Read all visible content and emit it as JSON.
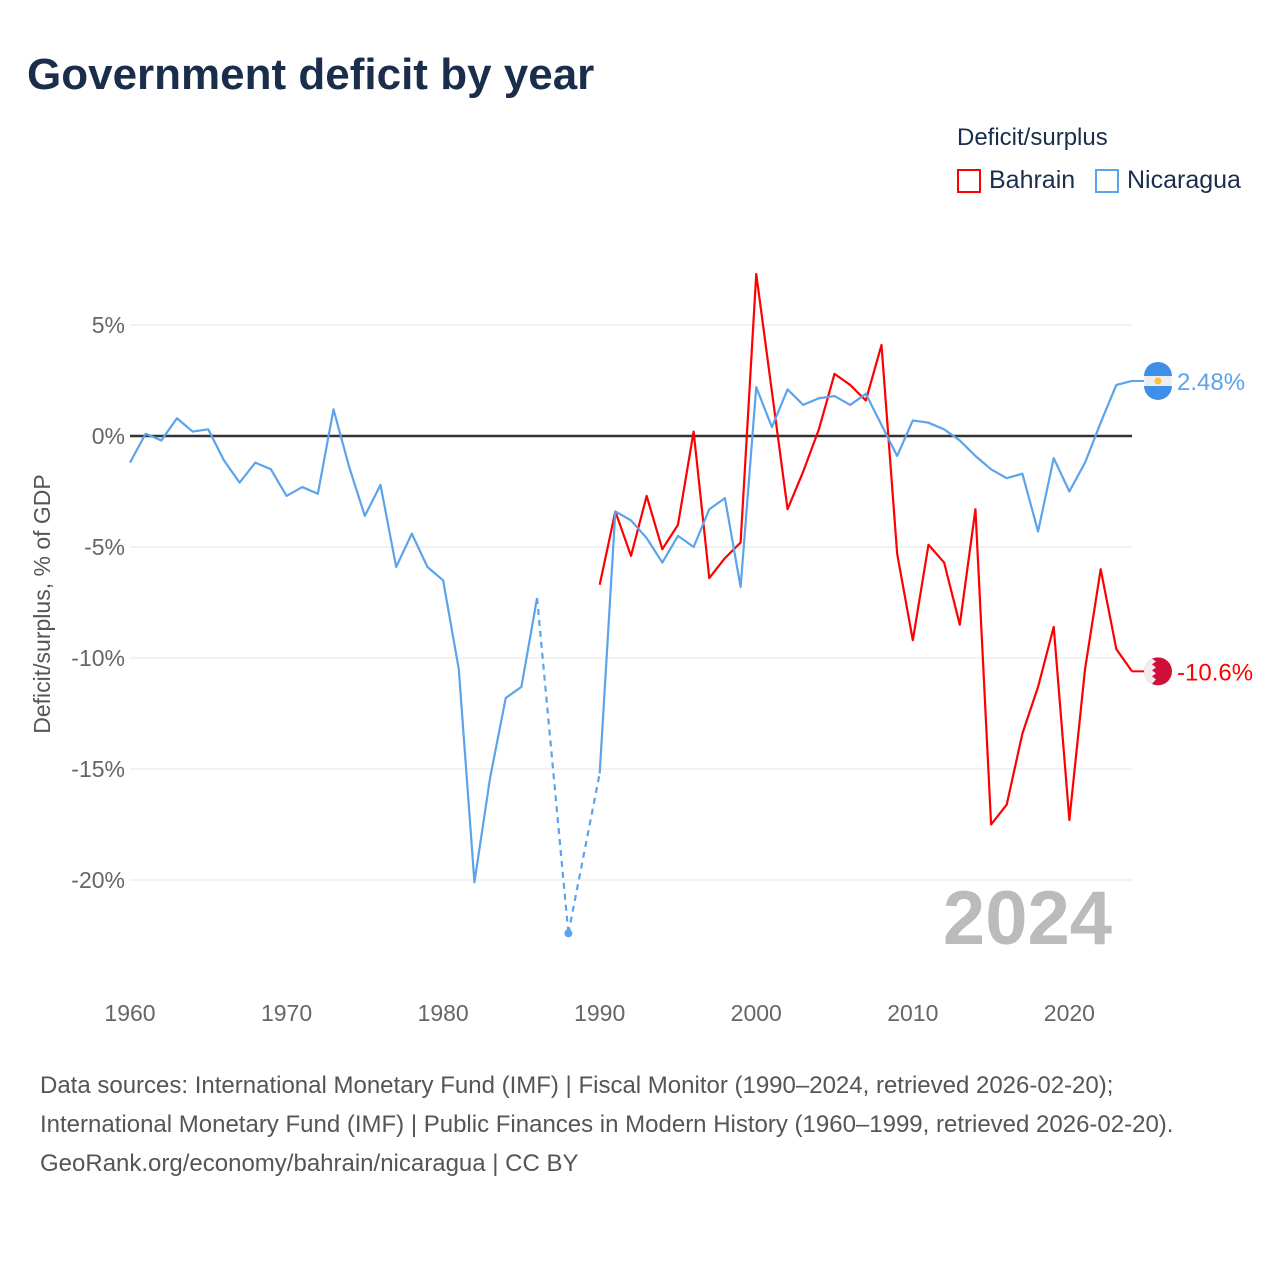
{
  "title": "Government deficit by year",
  "footer": {
    "sources": "Data sources: International Monetary Fund (IMF) | Fiscal Monitor (1990–2024, retrieved 2026-02-20); International Monetary Fund (IMF) | Public Finances in Modern History (1960–1999, retrieved 2026-02-20).",
    "credit": "GeoRank.org/economy/bahrain/nicaragua | CC BY"
  },
  "chart_data": {
    "type": "line",
    "title": "Government deficit by year",
    "xlabel": "",
    "ylabel": "Deficit/surplus, % of GDP",
    "xlim": [
      1960,
      2024
    ],
    "ylim": [
      -23,
      8
    ],
    "xticks": [
      1960,
      1970,
      1980,
      1990,
      2000,
      2010,
      2020
    ],
    "xtick_labels": [
      "1960",
      "1970",
      "1980",
      "1990",
      "2000",
      "2010",
      "2020"
    ],
    "yticks": [
      5,
      0,
      -5,
      -10,
      -15,
      -20
    ],
    "ytick_labels": [
      "5%",
      "0%",
      "-5%",
      "-10%",
      "-15%",
      "-20%"
    ],
    "legend_title": "Deficit/surplus",
    "legend_position": "top-right",
    "year_label": "2024",
    "series": [
      {
        "name": "Bahrain",
        "color": "#ff0000",
        "end_label": "-10.6%",
        "x": [
          1990,
          1991,
          1992,
          1993,
          1994,
          1995,
          1996,
          1997,
          1998,
          1999,
          2000,
          2001,
          2002,
          2003,
          2004,
          2005,
          2006,
          2007,
          2008,
          2009,
          2010,
          2011,
          2012,
          2013,
          2014,
          2015,
          2016,
          2017,
          2018,
          2019,
          2020,
          2021,
          2022,
          2023,
          2024
        ],
        "values": [
          -6.7,
          -3.4,
          -5.4,
          -2.7,
          -5.1,
          -4.0,
          0.2,
          -6.4,
          -5.5,
          -4.8,
          7.3,
          2.0,
          -3.3,
          -1.6,
          0.3,
          2.8,
          2.3,
          1.6,
          4.1,
          -5.3,
          -9.2,
          -4.9,
          -5.7,
          -8.5,
          -3.3,
          -17.5,
          -16.6,
          -13.4,
          -11.3,
          -8.6,
          -17.3,
          -10.5,
          -6.0,
          -9.6,
          -10.6
        ]
      },
      {
        "name": "Nicaragua",
        "color": "#5ba3ea",
        "end_label": "2.48%",
        "x": [
          1960,
          1961,
          1962,
          1963,
          1964,
          1965,
          1966,
          1967,
          1968,
          1969,
          1970,
          1971,
          1972,
          1973,
          1974,
          1975,
          1976,
          1977,
          1978,
          1979,
          1980,
          1981,
          1982,
          1983,
          1984,
          1985,
          1986,
          1987,
          1988,
          1989,
          1990,
          1991,
          1992,
          1993,
          1994,
          1995,
          1996,
          1997,
          1998,
          1999,
          2000,
          2001,
          2002,
          2003,
          2004,
          2005,
          2006,
          2007,
          2008,
          2009,
          2010,
          2011,
          2012,
          2013,
          2014,
          2015,
          2016,
          2017,
          2018,
          2019,
          2020,
          2021,
          2022,
          2023,
          2024
        ],
        "values": [
          -1.2,
          0.1,
          -0.2,
          0.8,
          0.2,
          0.3,
          -1.1,
          -2.1,
          -1.2,
          -1.5,
          -2.7,
          -2.3,
          -2.6,
          1.2,
          -1.4,
          -3.6,
          -2.2,
          -5.9,
          -4.4,
          -5.9,
          -6.5,
          -10.5,
          -20.1,
          -15.4,
          -11.8,
          -11.3,
          -7.3,
          null,
          -22.4,
          null,
          -15.2,
          -3.4,
          -3.8,
          -4.6,
          -5.7,
          -4.5,
          -5.0,
          -3.3,
          -2.8,
          -6.8,
          2.2,
          0.4,
          2.1,
          1.4,
          1.7,
          1.8,
          1.4,
          1.9,
          0.5,
          -0.9,
          0.7,
          0.6,
          0.3,
          -0.2,
          -0.9,
          -1.5,
          -1.9,
          -1.7,
          -4.3,
          -1.0,
          -2.5,
          -1.2,
          0.6,
          2.3,
          2.48
        ]
      }
    ]
  }
}
